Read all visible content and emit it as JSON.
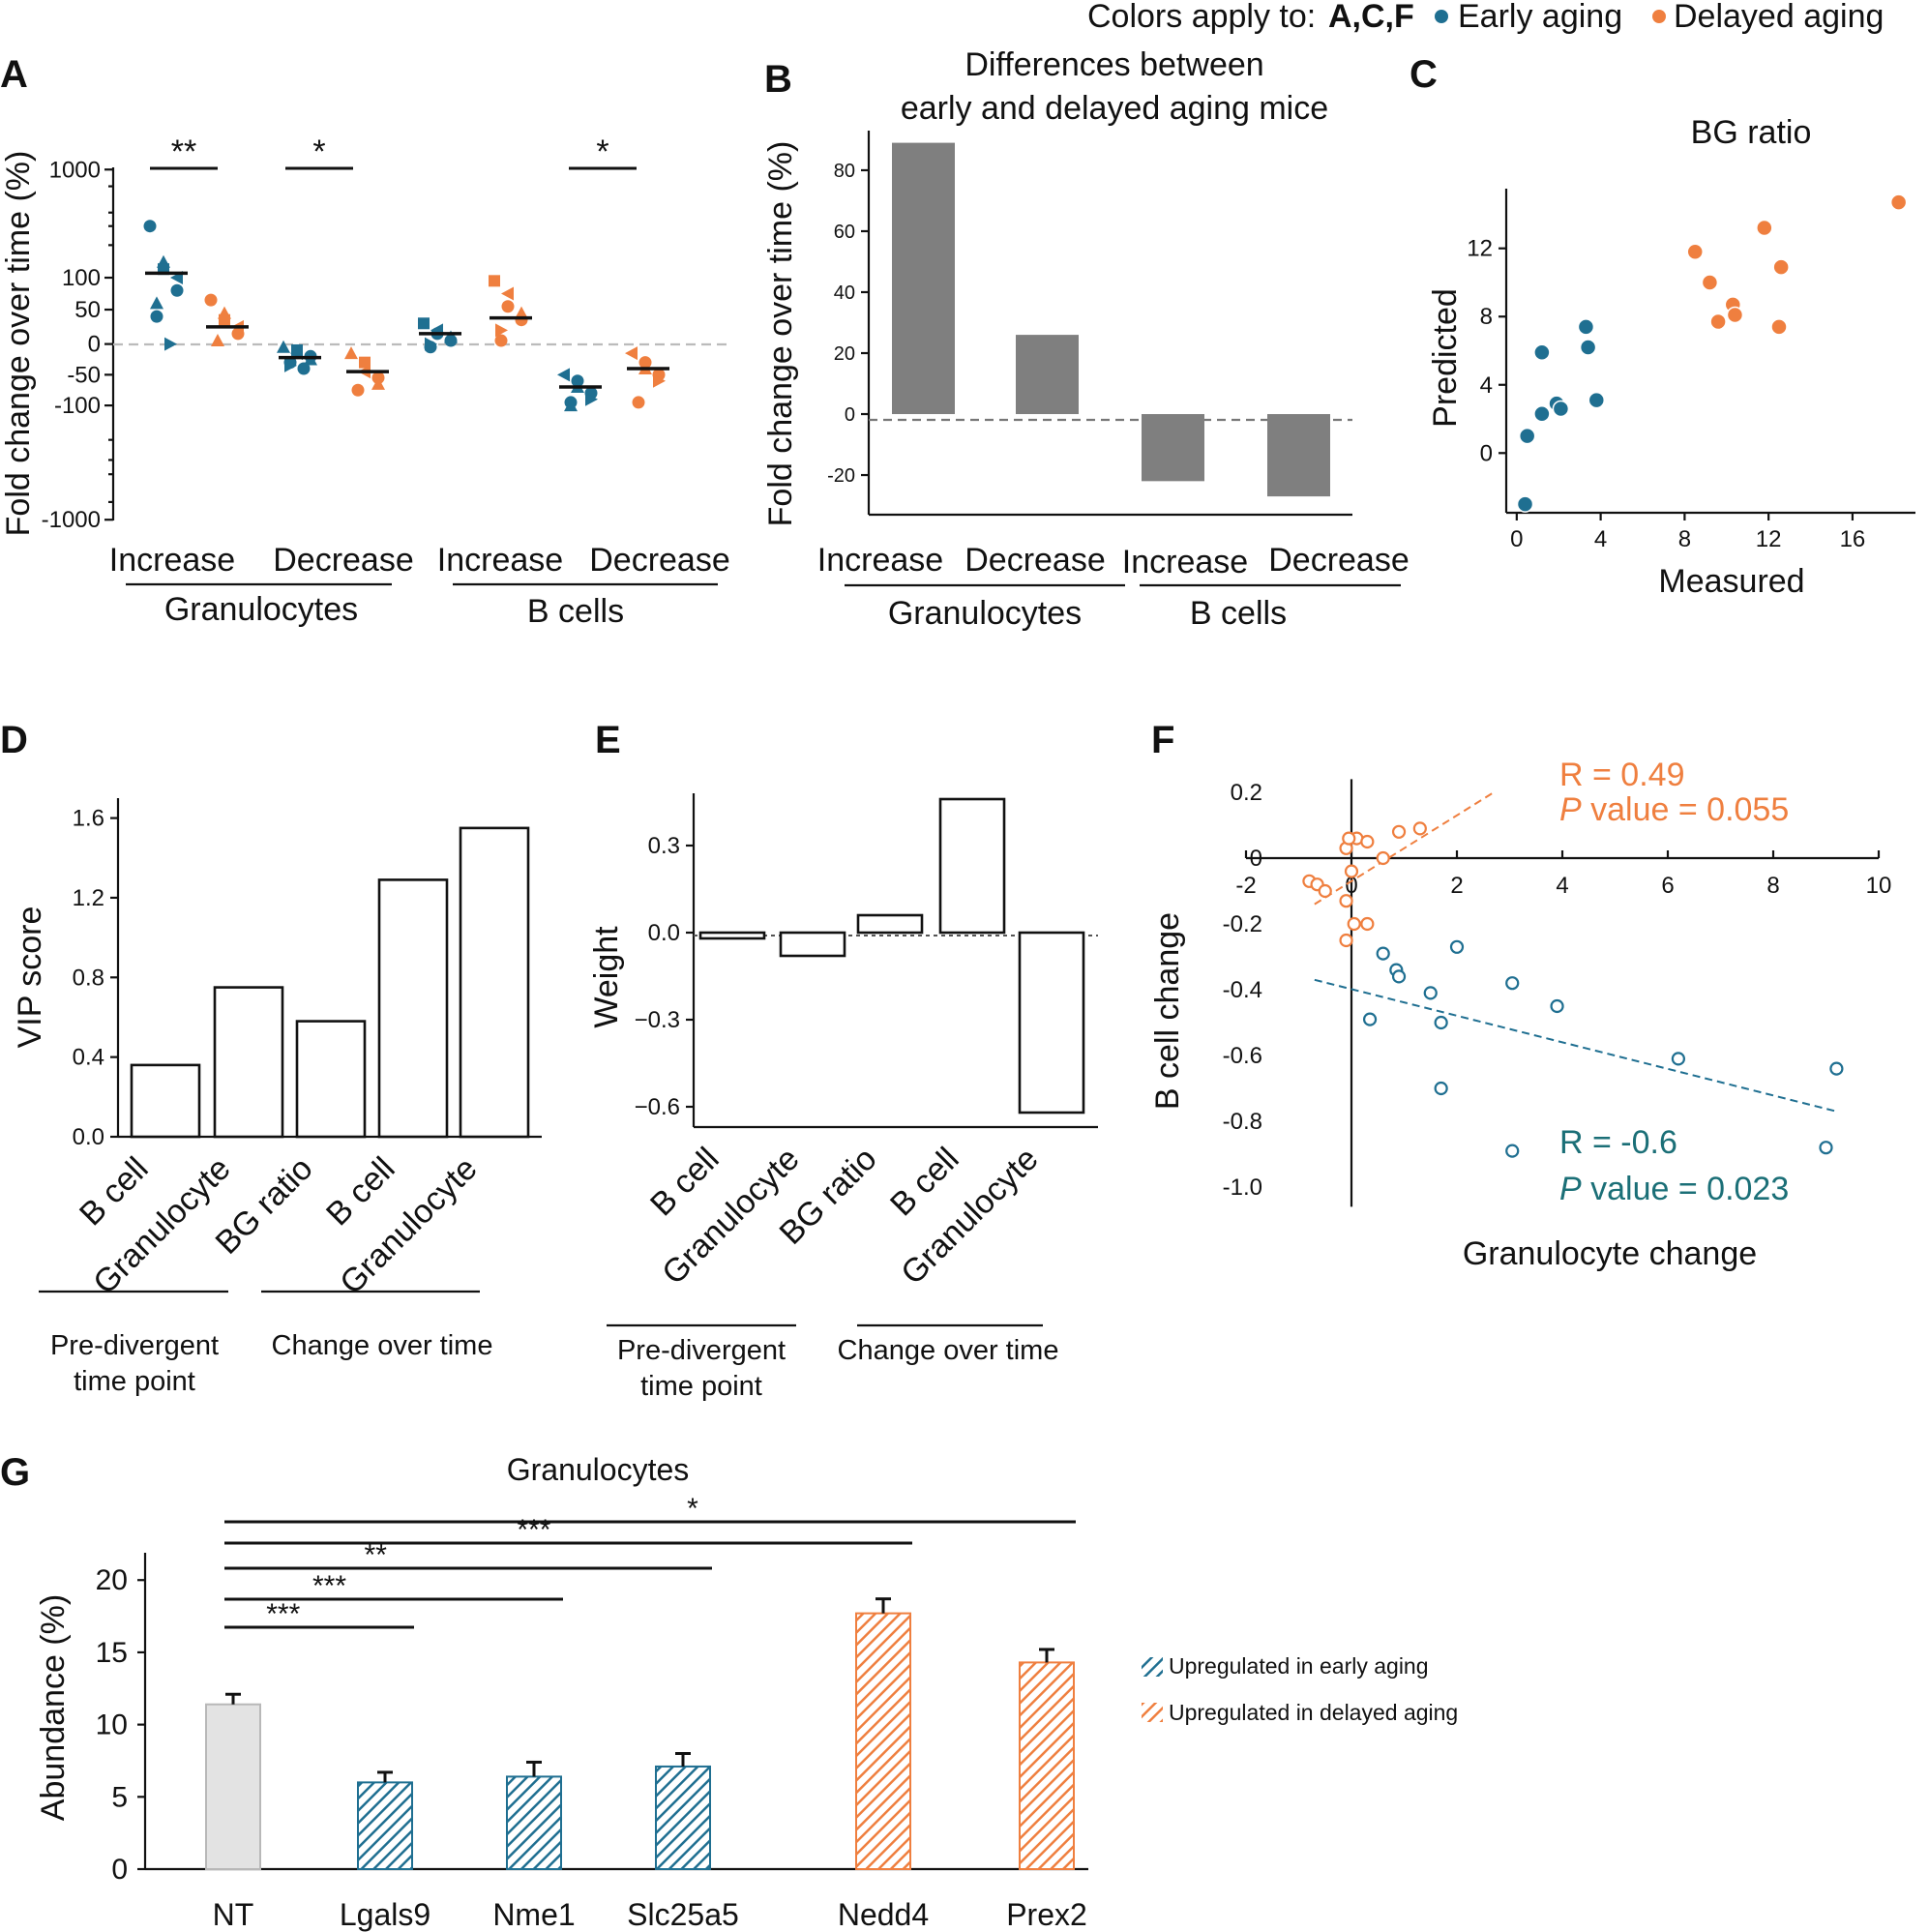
{
  "legend_top": {
    "prefix": "Colors apply to:",
    "panels": "A,C,F",
    "early": "Early aging",
    "delayed": "Delayed aging"
  },
  "colors": {
    "early": "#1f6f91",
    "delayed": "#ef7f3f",
    "gray_bar": "#7f7f7f",
    "nt_fill": "#e3e3e3",
    "nt_stroke": "#b8b8b8",
    "teal_text": "#1b6f77"
  },
  "chart_data": [
    {
      "panel": "A",
      "type": "scatter",
      "ylabel": "Fold  change over time (%)",
      "yticks": [
        1000,
        100,
        50,
        0,
        -50,
        -100,
        -1000
      ],
      "yticklabels": [
        "1000",
        "100",
        "50",
        "0",
        "-50",
        "-100",
        "-1000"
      ],
      "groups": [
        {
          "label": "Increase",
          "category": "Granulocytes"
        },
        {
          "label": "Decrease",
          "category": "Granulocytes"
        },
        {
          "label": "Increase",
          "category": "B cells"
        },
        {
          "label": "Decrease",
          "category": "B cells"
        }
      ],
      "categories": [
        "Granulocytes",
        "B cells"
      ],
      "series": [
        {
          "name": "Early aging",
          "groups": [
            {
              "values": [
                300,
                140,
                120,
                100,
                80,
                60,
                40,
                0
              ],
              "median": 110
            },
            {
              "values": [
                -5,
                -10,
                -15,
                -20,
                -25,
                -30,
                -35,
                -40
              ],
              "median": -22
            },
            {
              "values": [
                30,
                20,
                15,
                10,
                5,
                0,
                -5
              ],
              "median": 15
            },
            {
              "values": [
                -50,
                -60,
                -70,
                -80,
                -90,
                -95,
                -100
              ],
              "median": -70
            }
          ]
        },
        {
          "name": "Delayed aging",
          "groups": [
            {
              "values": [
                65,
                45,
                35,
                25,
                15,
                5
              ],
              "median": 25
            },
            {
              "values": [
                -15,
                -30,
                -45,
                -55,
                -65,
                -75
              ],
              "median": -45
            },
            {
              "values": [
                95,
                75,
                55,
                45,
                35,
                20,
                5
              ],
              "median": 38
            },
            {
              "values": [
                -15,
                -30,
                -40,
                -50,
                -60,
                -95
              ],
              "median": -40
            }
          ]
        }
      ],
      "significance": [
        "**",
        "*",
        "*"
      ]
    },
    {
      "panel": "B",
      "type": "bar",
      "title": [
        "Differences between",
        "early and delayed aging mice"
      ],
      "ylabel": "Fold  change over time (%)",
      "ylim": [
        -33,
        93
      ],
      "yticks": [
        80,
        60,
        40,
        20,
        0,
        -20
      ],
      "categories": [
        "Increase",
        "Decrease",
        "Increase",
        "Decrease"
      ],
      "groups": [
        "Granulocytes",
        "B cells"
      ],
      "values": [
        89,
        26,
        -22,
        -27
      ]
    },
    {
      "panel": "C",
      "type": "scatter",
      "title": "BG ratio",
      "xlabel": "Measured",
      "ylabel": "Predicted",
      "xlim": [
        -0.5,
        19
      ],
      "ylim": [
        -3.5,
        15.5
      ],
      "xticks": [
        0,
        4,
        8,
        12,
        16
      ],
      "yticks": [
        0,
        4,
        8,
        12
      ],
      "series": [
        {
          "name": "Early aging",
          "x": [
            0.4,
            0.5,
            1.2,
            1.2,
            1.9,
            2.1,
            3.3,
            3.4,
            3.8
          ],
          "y": [
            -3.0,
            1.0,
            2.3,
            5.9,
            2.9,
            2.6,
            7.4,
            6.2,
            3.1
          ]
        },
        {
          "name": "Delayed aging",
          "x": [
            8.5,
            9.2,
            9.6,
            10.3,
            10.4,
            11.8,
            12.5,
            12.6,
            18.2
          ],
          "y": [
            11.8,
            10.0,
            7.7,
            8.7,
            8.1,
            13.2,
            7.4,
            10.9,
            14.7
          ]
        }
      ]
    },
    {
      "panel": "D",
      "type": "bar",
      "ylabel": "VIP score",
      "ylim": [
        0,
        1.7
      ],
      "yticks": [
        "0.0",
        "0.4",
        "0.8",
        "1.2",
        "1.6"
      ],
      "categories": [
        "B cell",
        "Granulocyte",
        "BG ratio",
        "B cell",
        "Granulocyte"
      ],
      "values": [
        0.36,
        0.75,
        0.58,
        1.29,
        1.55
      ],
      "groups": [
        [
          "Pre-divergent",
          "time point"
        ],
        "Change over time"
      ]
    },
    {
      "panel": "E",
      "type": "bar",
      "ylabel": "Weight",
      "ylim": [
        -0.67,
        0.48
      ],
      "yticks": [
        "0.3",
        "0.0",
        "−0.3",
        "−0.6"
      ],
      "categories": [
        "B cell",
        "Granulocyte",
        "BG ratio",
        "B cell",
        "Granulocyte"
      ],
      "values": [
        -0.02,
        -0.08,
        0.06,
        0.46,
        -0.62
      ],
      "groups": [
        [
          "Pre-divergent",
          "time point"
        ],
        "Change over time"
      ]
    },
    {
      "panel": "F",
      "type": "scatter",
      "xlabel": "Granulocyte change",
      "ylabel": "B cell change",
      "xlim": [
        -2.3,
        10.2
      ],
      "ylim": [
        -1.07,
        0.27
      ],
      "xticks": [
        "-2",
        "0",
        "2",
        "4",
        "6",
        "8",
        "10"
      ],
      "yticks": [
        "0.2",
        "0",
        "-0.2",
        "-0.4",
        "-0.6",
        "-0.8",
        "-1.0"
      ],
      "series": [
        {
          "name": "Early aging",
          "R": "R = -0.6",
          "p_label": "P",
          "p_text": " value = 0.023",
          "x": [
            0.6,
            0.85,
            0.9,
            0.35,
            1.5,
            2.0,
            3.05,
            1.7,
            1.7,
            3.9,
            6.2,
            3.05,
            9.2,
            9.0
          ],
          "y": [
            -0.29,
            -0.34,
            -0.36,
            -0.49,
            -0.41,
            -0.27,
            -0.38,
            -0.5,
            -0.7,
            -0.45,
            -0.61,
            -0.89,
            -0.64,
            -0.88
          ],
          "fit": [
            [
              -0.7,
              -0.37
            ],
            [
              9.2,
              -0.77
            ]
          ]
        },
        {
          "name": "Delayed aging",
          "R": "R = 0.49",
          "p_label": "P",
          "p_text": " value = 0.055",
          "x": [
            -0.8,
            -0.65,
            -0.5,
            -0.1,
            0.05,
            0.3,
            0.6,
            0.9,
            1.3,
            0.1,
            -0.1,
            -0.05,
            0.3,
            -0.1,
            0.0
          ],
          "y": [
            -0.07,
            -0.08,
            -0.1,
            -0.13,
            -0.2,
            -0.2,
            0.0,
            0.08,
            0.09,
            0.06,
            0.03,
            0.06,
            0.05,
            -0.25,
            -0.04
          ],
          "fit": [
            [
              -0.7,
              -0.14
            ],
            [
              2.7,
              0.2
            ]
          ]
        }
      ]
    },
    {
      "panel": "G",
      "type": "bar",
      "title": "Granulocytes",
      "ylabel": "Abundance (%)",
      "ylim": [
        0,
        22
      ],
      "yticks": [
        0,
        5,
        10,
        15,
        20
      ],
      "categories": [
        "NT",
        "Lgals9",
        "Nme1",
        "Slc25a5",
        "Nedd4",
        "Prex2"
      ],
      "values": [
        11.4,
        6.0,
        6.4,
        7.1,
        17.7,
        14.3
      ],
      "errors": [
        0.7,
        0.7,
        1.0,
        0.9,
        1.0,
        0.9
      ],
      "groups": [
        "control",
        "early",
        "early",
        "early",
        "delayed",
        "delayed"
      ],
      "significance": [
        {
          "label": "***",
          "to": "Lgals9"
        },
        {
          "label": "***",
          "to": "Nme1"
        },
        {
          "label": "**",
          "to": "Slc25a5"
        },
        {
          "label": "***",
          "to": "Nedd4"
        },
        {
          "label": "*",
          "to": "Prex2"
        }
      ],
      "legend": [
        "Upregulated in early aging",
        "Upregulated in delayed aging"
      ]
    }
  ]
}
